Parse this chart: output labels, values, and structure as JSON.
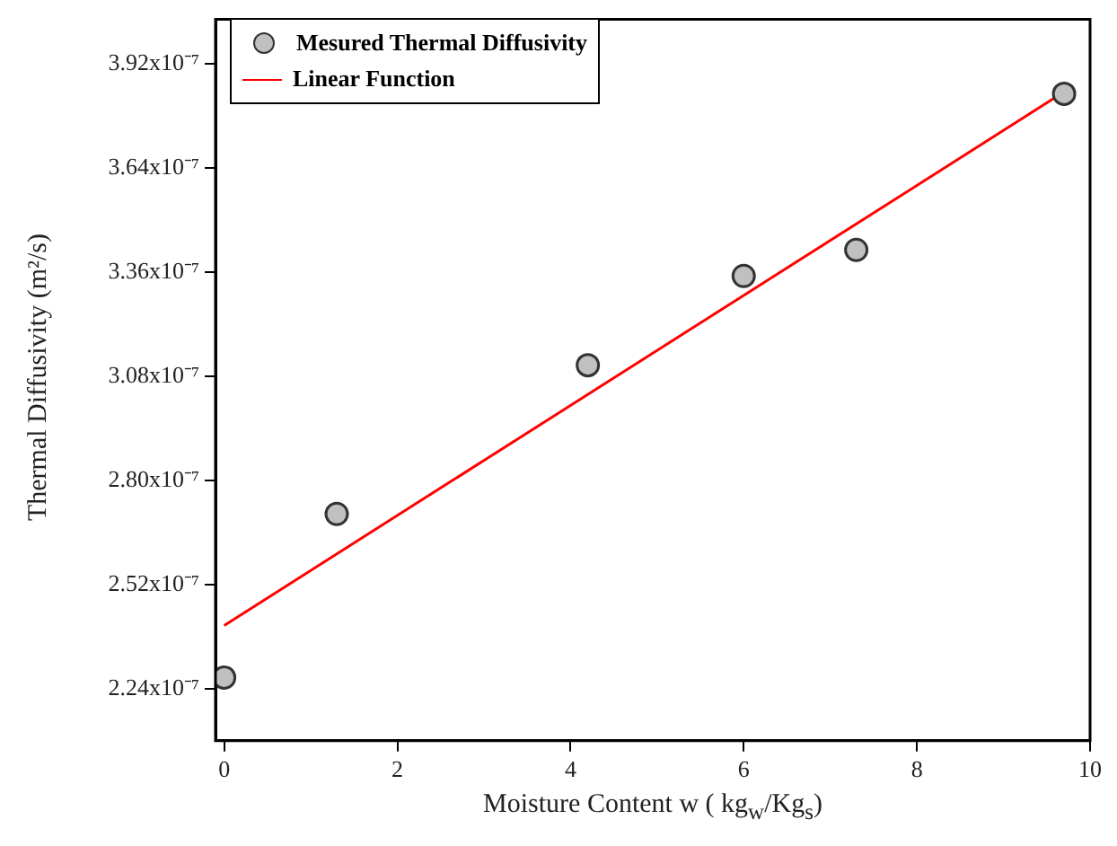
{
  "chart_data": {
    "type": "scatter",
    "xlabel": "Moisture Content w ( kg$_{w}$/Kg$_{s}$)",
    "ylabel": "Thermal Diffusivity (m²/s)",
    "xlim": [
      -0.1,
      10
    ],
    "xticks": [
      0,
      2,
      4,
      6,
      8,
      10
    ],
    "ylim": [
      2.1e-07,
      4.04e-07
    ],
    "yticks": [
      {
        "value": 2.24e-07,
        "label": "2.24x10⁻⁷"
      },
      {
        "value": 2.52e-07,
        "label": "2.52x10⁻⁷"
      },
      {
        "value": 2.8e-07,
        "label": "2.80x10⁻⁷"
      },
      {
        "value": 3.08e-07,
        "label": "3.08x10⁻⁷"
      },
      {
        "value": 3.36e-07,
        "label": "3.36x10⁻⁷"
      },
      {
        "value": 3.64e-07,
        "label": "3.64x10⁻⁷"
      },
      {
        "value": 3.92e-07,
        "label": "3.92x10⁻⁷"
      }
    ],
    "grid": false,
    "legend": "top left",
    "series": [
      {
        "name": "Mesured Thermal Diffusivity",
        "marker": "circle",
        "color": "#c0c0c0",
        "x": [
          0,
          1.3,
          4.2,
          6.0,
          7.3,
          9.7
        ],
        "values": [
          2.27e-07,
          2.71e-07,
          3.11e-07,
          3.35e-07,
          3.42e-07,
          3.84e-07
        ]
      },
      {
        "name": "Linear Function",
        "type": "line",
        "marker": "none",
        "color": "#ff0000",
        "x": [
          0,
          9.7
        ],
        "values": [
          2.41e-07,
          3.845e-07
        ]
      }
    ]
  }
}
